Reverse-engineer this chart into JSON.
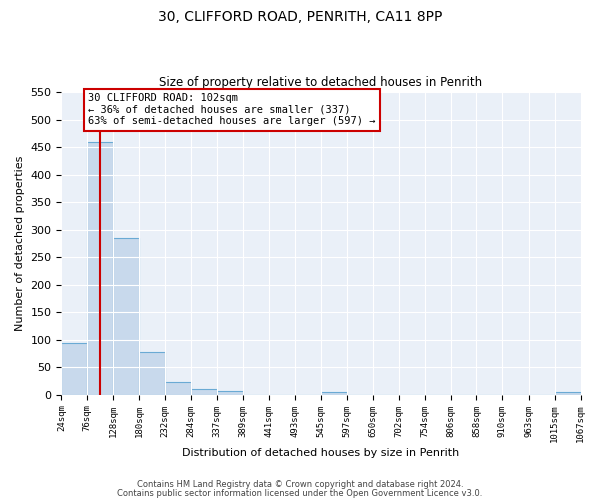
{
  "title1": "30, CLIFFORD ROAD, PENRITH, CA11 8PP",
  "title2": "Size of property relative to detached houses in Penrith",
  "xlabel": "Distribution of detached houses by size in Penrith",
  "ylabel": "Number of detached properties",
  "bin_edges": [
    24,
    76,
    128,
    180,
    232,
    284,
    337,
    389,
    441,
    493,
    545,
    597,
    650,
    702,
    754,
    806,
    858,
    910,
    963,
    1015,
    1067
  ],
  "bar_heights": [
    94,
    460,
    285,
    77,
    23,
    10,
    7,
    0,
    0,
    0,
    5,
    0,
    0,
    0,
    0,
    0,
    0,
    0,
    0,
    4
  ],
  "bar_color": "#c8d9ec",
  "bar_edge_color": "#6aaad4",
  "vline_x": 102,
  "vline_color": "#cc0000",
  "ylim": [
    0,
    550
  ],
  "yticks": [
    0,
    50,
    100,
    150,
    200,
    250,
    300,
    350,
    400,
    450,
    500,
    550
  ],
  "annotation_line1": "30 CLIFFORD ROAD: 102sqm",
  "annotation_line2": "← 36% of detached houses are smaller (337)",
  "annotation_line3": "63% of semi-detached houses are larger (597) →",
  "annotation_box_color": "#ffffff",
  "annotation_box_edgecolor": "#cc0000",
  "footer1": "Contains HM Land Registry data © Crown copyright and database right 2024.",
  "footer2": "Contains public sector information licensed under the Open Government Licence v3.0.",
  "fig_facecolor": "#ffffff",
  "plot_facecolor": "#eaf0f8",
  "grid_color": "#ffffff",
  "tick_labels": [
    "24sqm",
    "76sqm",
    "128sqm",
    "180sqm",
    "232sqm",
    "284sqm",
    "337sqm",
    "389sqm",
    "441sqm",
    "493sqm",
    "545sqm",
    "597sqm",
    "650sqm",
    "702sqm",
    "754sqm",
    "806sqm",
    "858sqm",
    "910sqm",
    "963sqm",
    "1015sqm",
    "1067sqm"
  ]
}
